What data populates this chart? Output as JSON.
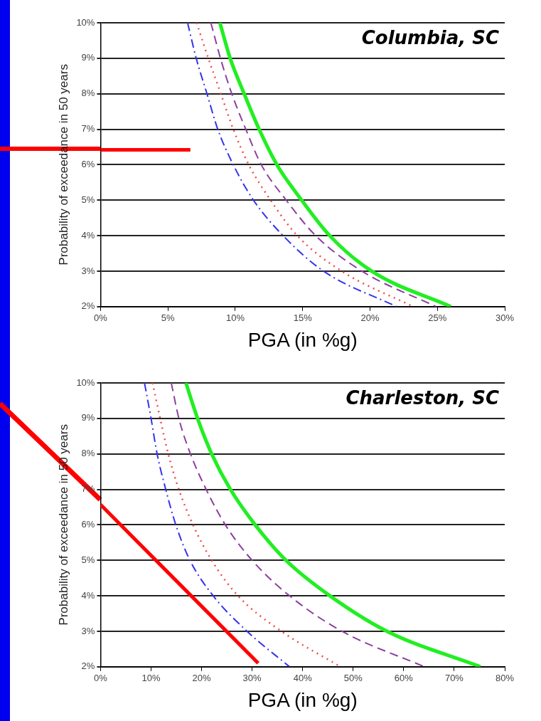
{
  "chart_data": [
    {
      "type": "line",
      "title": "Columbia, SC",
      "xlabel": "PGA (in %g)",
      "ylabel": "Probability of exceedance in 50 years",
      "grid": "y",
      "marker": "none",
      "xlim": [
        0,
        30
      ],
      "xticks": [
        {
          "value": 0,
          "label": "0%"
        },
        {
          "value": 5,
          "label": "5%"
        },
        {
          "value": 10,
          "label": "10%"
        },
        {
          "value": 15,
          "label": "15%"
        },
        {
          "value": 20,
          "label": "20%"
        },
        {
          "value": 25,
          "label": "25%"
        },
        {
          "value": 30,
          "label": "30%"
        }
      ],
      "ylim": [
        2,
        10
      ],
      "yticks": [
        {
          "value": 2,
          "label": "2%"
        },
        {
          "value": 3,
          "label": "3%"
        },
        {
          "value": 4,
          "label": "4%"
        },
        {
          "value": 5,
          "label": "5%"
        },
        {
          "value": 6,
          "label": "6%"
        },
        {
          "value": 7,
          "label": "7%"
        },
        {
          "value": 8,
          "label": "8%"
        },
        {
          "value": 9,
          "label": "9%"
        },
        {
          "value": 10,
          "label": "10%"
        }
      ],
      "series": [
        {
          "color": "#3333ee",
          "line_style": "dashdot",
          "x": [
            6.46,
            7.1,
            7.9,
            8.7,
            9.85,
            11.35,
            13.55,
            16.55,
            21.97
          ],
          "values": [
            10,
            9,
            8,
            7,
            6,
            5,
            4,
            3,
            2
          ]
        },
        {
          "color": "#f04a4a",
          "line_style": "dotted",
          "x": [
            7.13,
            8.0,
            8.93,
            9.85,
            11.0,
            12.62,
            14.6,
            17.9,
            23.2
          ],
          "values": [
            10,
            9,
            8,
            7,
            6,
            5,
            4,
            3,
            2
          ]
        },
        {
          "color": "#8e3fa0",
          "line_style": "dashed",
          "x": [
            8.19,
            8.9,
            9.74,
            10.78,
            11.93,
            13.78,
            15.97,
            19.4,
            24.9
          ],
          "values": [
            10,
            9,
            8,
            7,
            6,
            5,
            4,
            3,
            2
          ]
        },
        {
          "color": "#22ee22",
          "line_style": "solid",
          "x": [
            8.86,
            9.62,
            10.66,
            11.77,
            13.09,
            14.93,
            17.01,
            20.12,
            26.0
          ],
          "values": [
            10,
            9,
            8,
            7,
            6,
            5,
            4,
            3,
            2
          ]
        },
        {
          "color": "#ff0000",
          "line_style": "solid",
          "x": [
            0,
            6.67
          ],
          "values": [
            6.42,
            6.42
          ]
        }
      ]
    },
    {
      "type": "line",
      "title": "Charleston, SC",
      "xlabel": "PGA (in %g)",
      "ylabel": "Probability of exceedance in 50 years",
      "grid": "y",
      "marker": "none",
      "xlim": [
        0,
        80
      ],
      "xticks": [
        {
          "value": 0,
          "label": "0%"
        },
        {
          "value": 10,
          "label": "10%"
        },
        {
          "value": 20,
          "label": "20%"
        },
        {
          "value": 30,
          "label": "30%"
        },
        {
          "value": 40,
          "label": "40%"
        },
        {
          "value": 50,
          "label": "50%"
        },
        {
          "value": 60,
          "label": "60%"
        },
        {
          "value": 70,
          "label": "70%"
        },
        {
          "value": 80,
          "label": "80%"
        }
      ],
      "ylim": [
        2,
        10
      ],
      "yticks": [
        {
          "value": 2,
          "label": "2%"
        },
        {
          "value": 3,
          "label": "3%"
        },
        {
          "value": 4,
          "label": "4%"
        },
        {
          "value": 5,
          "label": "5%"
        },
        {
          "value": 6,
          "label": "6%"
        },
        {
          "value": 7,
          "label": "7%"
        },
        {
          "value": 8,
          "label": "8%"
        },
        {
          "value": 9,
          "label": "9%"
        },
        {
          "value": 10,
          "label": "10%"
        }
      ],
      "series": [
        {
          "color": "#3333ee",
          "line_style": "dashdot",
          "x": [
            8.7,
            10.0,
            11.2,
            12.9,
            14.9,
            17.7,
            22.3,
            29.0,
            37.4
          ],
          "values": [
            10,
            9,
            8,
            7,
            6,
            5,
            4,
            3,
            2
          ]
        },
        {
          "color": "#f04a4a",
          "line_style": "dotted",
          "x": [
            10.3,
            11.8,
            13.4,
            15.5,
            18.3,
            22.0,
            27.2,
            35.8,
            47.5
          ],
          "values": [
            10,
            9,
            8,
            7,
            6,
            5,
            4,
            3,
            2
          ]
        },
        {
          "color": "#8e3fa0",
          "line_style": "dashed",
          "x": [
            14.0,
            15.5,
            17.8,
            20.9,
            24.7,
            30.0,
            37.4,
            47.8,
            64.1
          ],
          "values": [
            10,
            9,
            8,
            7,
            6,
            5,
            4,
            3,
            2
          ]
        },
        {
          "color": "#22ee22",
          "line_style": "solid",
          "x": [
            16.9,
            19.2,
            22.0,
            25.7,
            30.6,
            36.7,
            45.4,
            56.7,
            75.2
          ],
          "values": [
            10,
            9,
            8,
            7,
            6,
            5,
            4,
            3,
            2
          ]
        },
        {
          "color": "#ff0000",
          "line_style": "solid",
          "x": [
            0,
            31.2
          ],
          "values": [
            6.57,
            2.1
          ]
        }
      ]
    }
  ]
}
